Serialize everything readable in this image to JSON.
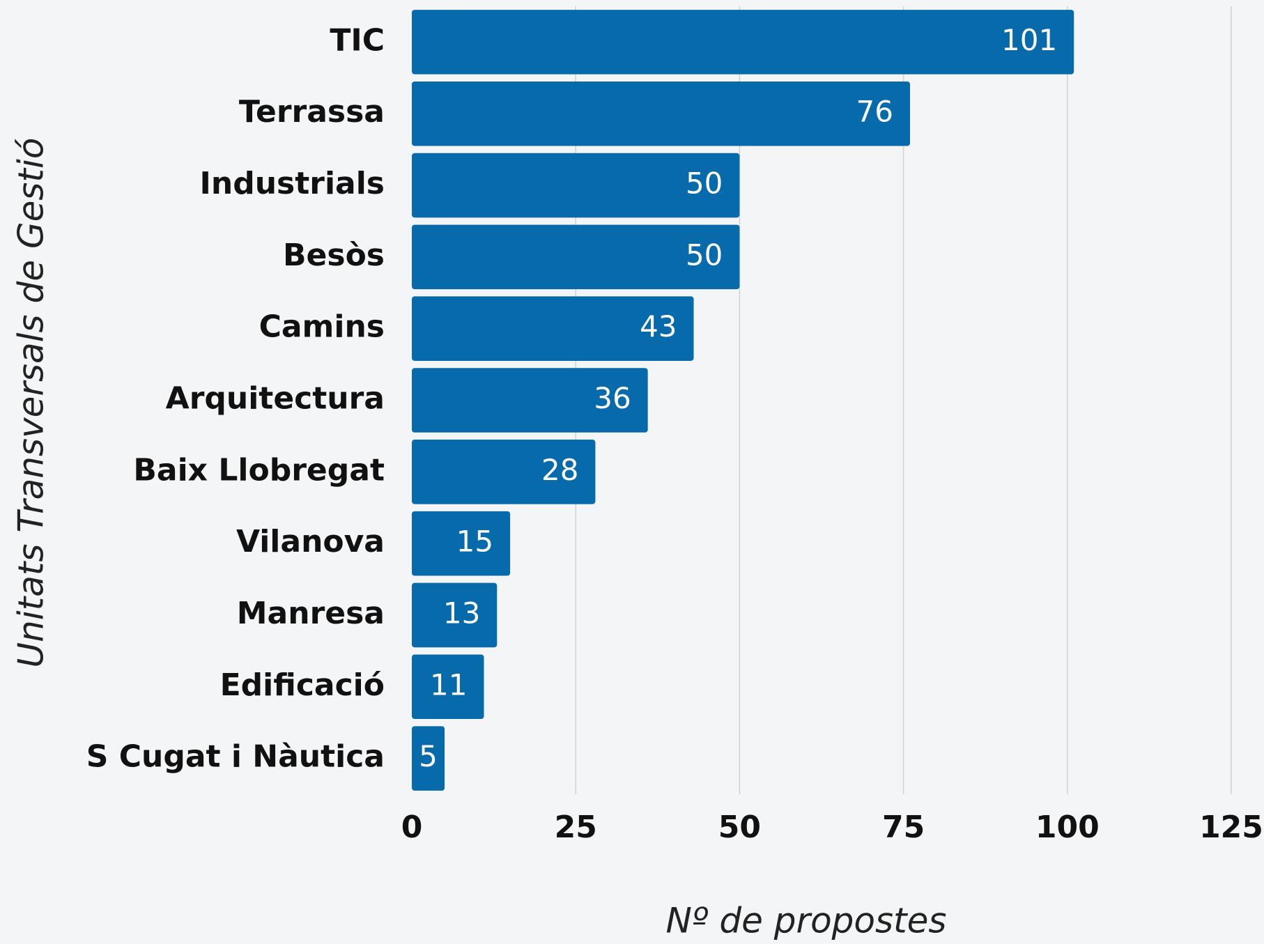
{
  "chart_data": {
    "type": "bar",
    "orientation": "horizontal",
    "categories": [
      "TIC",
      "Terrassa",
      "Industrials",
      "Besòs",
      "Camins",
      "Arquitectura",
      "Baix Llobregat",
      "Vilanova",
      "Manresa",
      "Edificació",
      "S Cugat i Nàutica"
    ],
    "values": [
      101,
      76,
      50,
      50,
      43,
      36,
      28,
      15,
      13,
      11,
      5
    ],
    "color": "#066aab",
    "xlim": [
      0,
      125
    ],
    "xticks": [
      0,
      25,
      50,
      75,
      100,
      125
    ],
    "grid": true,
    "x_label": "Nº de propostes",
    "y_label": "Unitats Transversals de Gestió"
  }
}
